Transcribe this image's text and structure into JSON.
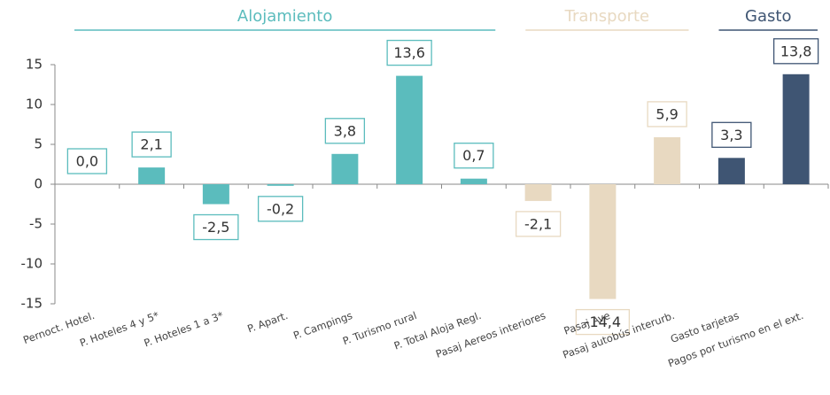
{
  "chart_data": {
    "type": "bar",
    "ylim": [
      -15,
      15
    ],
    "yticks": [
      -15,
      -10,
      -5,
      0,
      5,
      10,
      15
    ],
    "series": [
      {
        "name": "Alojamiento",
        "color": "#5bbcbd",
        "categories": [
          "Pernoct. Hotel.",
          "P. Hoteles 4 y 5*",
          "P. Hoteles 1 a 3*",
          "P.  Apart.",
          "P. Campings",
          "P. Turismo rural",
          "P. Total Aloja Regl."
        ],
        "values": [
          0.0,
          2.1,
          -2.5,
          -0.2,
          3.8,
          13.6,
          0.7
        ],
        "value_labels": [
          "0,0",
          "2,1",
          "-2,5",
          "-0,2",
          "3,8",
          "13,6",
          "0,7"
        ]
      },
      {
        "name": "Transporte",
        "color": "#e8d9c1",
        "categories": [
          "Pasaj Aereos interiores",
          "Pasaj Ave",
          "Pasaj autobús interurb."
        ],
        "values": [
          -2.1,
          -14.4,
          5.9
        ],
        "value_labels": [
          "-2,1",
          "-14,4",
          "5,9"
        ]
      },
      {
        "name": "Gasto",
        "color": "#3f5573",
        "categories": [
          "Gasto tarjetas",
          "Pagos por turismo en el ext."
        ],
        "values": [
          3.3,
          13.8
        ],
        "value_labels": [
          "3,3",
          "13,8"
        ]
      }
    ]
  }
}
